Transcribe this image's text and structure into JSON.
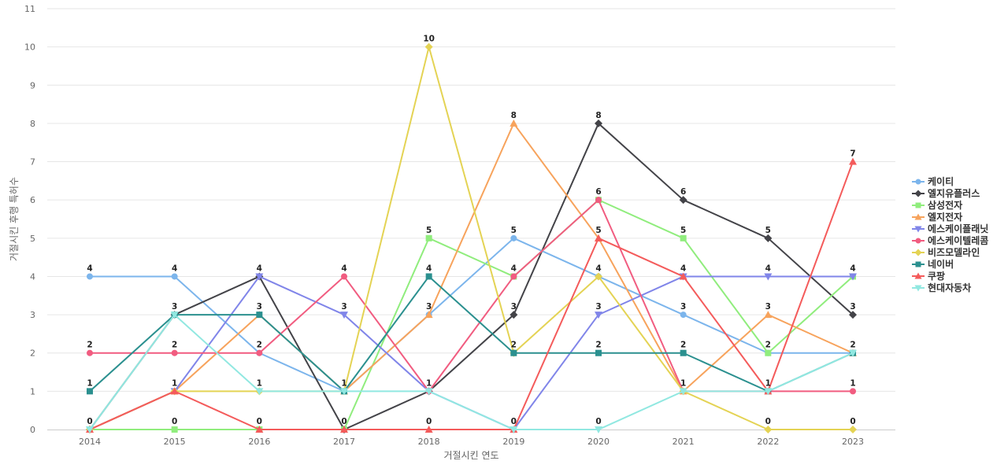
{
  "chart_data": {
    "type": "line",
    "title": "",
    "xlabel": "거절시킨 연도",
    "ylabel": "거절시킨 후행 특허수",
    "x": [
      "2014",
      "2015",
      "2016",
      "2017",
      "2018",
      "2019",
      "2020",
      "2021",
      "2022",
      "2023"
    ],
    "ylim": [
      0,
      11
    ],
    "yticks": [
      0,
      1,
      2,
      3,
      4,
      5,
      6,
      7,
      8,
      9,
      10,
      11
    ],
    "grid": true,
    "legend_position": "right",
    "series": [
      {
        "name": "케이티",
        "color": "#7cb5ec",
        "marker": "circle",
        "values": [
          4,
          4,
          2,
          1,
          3,
          5,
          4,
          3,
          2,
          2
        ]
      },
      {
        "name": "엘지유플러스",
        "color": "#434348",
        "marker": "diamond",
        "values": [
          0,
          3,
          4,
          0,
          1,
          3,
          8,
          6,
          5,
          3
        ]
      },
      {
        "name": "삼성전자",
        "color": "#90ed7d",
        "marker": "square",
        "values": [
          0,
          0,
          0,
          0,
          5,
          4,
          6,
          5,
          2,
          4
        ]
      },
      {
        "name": "엘지전자",
        "color": "#f7a35c",
        "marker": "triangle",
        "values": [
          0,
          1,
          3,
          1,
          3,
          8,
          5,
          1,
          3,
          2
        ]
      },
      {
        "name": "에스케이플래닛",
        "color": "#8085e9",
        "marker": "triangle-down",
        "values": [
          0,
          1,
          4,
          3,
          1,
          0,
          3,
          4,
          4,
          4
        ]
      },
      {
        "name": "에스케이텔레콤",
        "color": "#f15c80",
        "marker": "circle",
        "values": [
          2,
          2,
          2,
          4,
          1,
          4,
          6,
          1,
          1,
          1
        ]
      },
      {
        "name": "비즈모델라인",
        "color": "#e4d354",
        "marker": "diamond",
        "values": [
          0,
          1,
          1,
          1,
          10,
          2,
          4,
          1,
          0,
          0
        ]
      },
      {
        "name": "네이버",
        "color": "#2b908f",
        "marker": "square",
        "values": [
          1,
          3,
          3,
          1,
          4,
          2,
          2,
          2,
          1,
          2
        ]
      },
      {
        "name": "쿠팡",
        "color": "#f45b5b",
        "marker": "triangle",
        "values": [
          0,
          1,
          0,
          0,
          0,
          0,
          5,
          4,
          1,
          7
        ]
      },
      {
        "name": "현대자동차",
        "color": "#91e8e1",
        "marker": "triangle-down",
        "values": [
          0,
          3,
          1,
          1,
          1,
          0,
          0,
          1,
          1,
          2
        ]
      }
    ],
    "data_labels": [
      {
        "x": "2014",
        "values": [
          4,
          2,
          1,
          0
        ]
      },
      {
        "x": "2015",
        "values": [
          4,
          3,
          2,
          1,
          0
        ]
      },
      {
        "x": "2016",
        "values": [
          4,
          3,
          2,
          1,
          0
        ]
      },
      {
        "x": "2017",
        "values": [
          4,
          3,
          1,
          0
        ]
      },
      {
        "x": "2018",
        "values": [
          10,
          5,
          4,
          3,
          1,
          0
        ]
      },
      {
        "x": "2019",
        "values": [
          8,
          5,
          4,
          3,
          2,
          0
        ]
      },
      {
        "x": "2020",
        "values": [
          8,
          6,
          5,
          4,
          3,
          2,
          0
        ]
      },
      {
        "x": "2021",
        "values": [
          6,
          5,
          4,
          3,
          2,
          1
        ]
      },
      {
        "x": "2022",
        "values": [
          5,
          4,
          3,
          2,
          1,
          0
        ]
      },
      {
        "x": "2023",
        "values": [
          7,
          4,
          3,
          2,
          1,
          0
        ]
      }
    ]
  }
}
